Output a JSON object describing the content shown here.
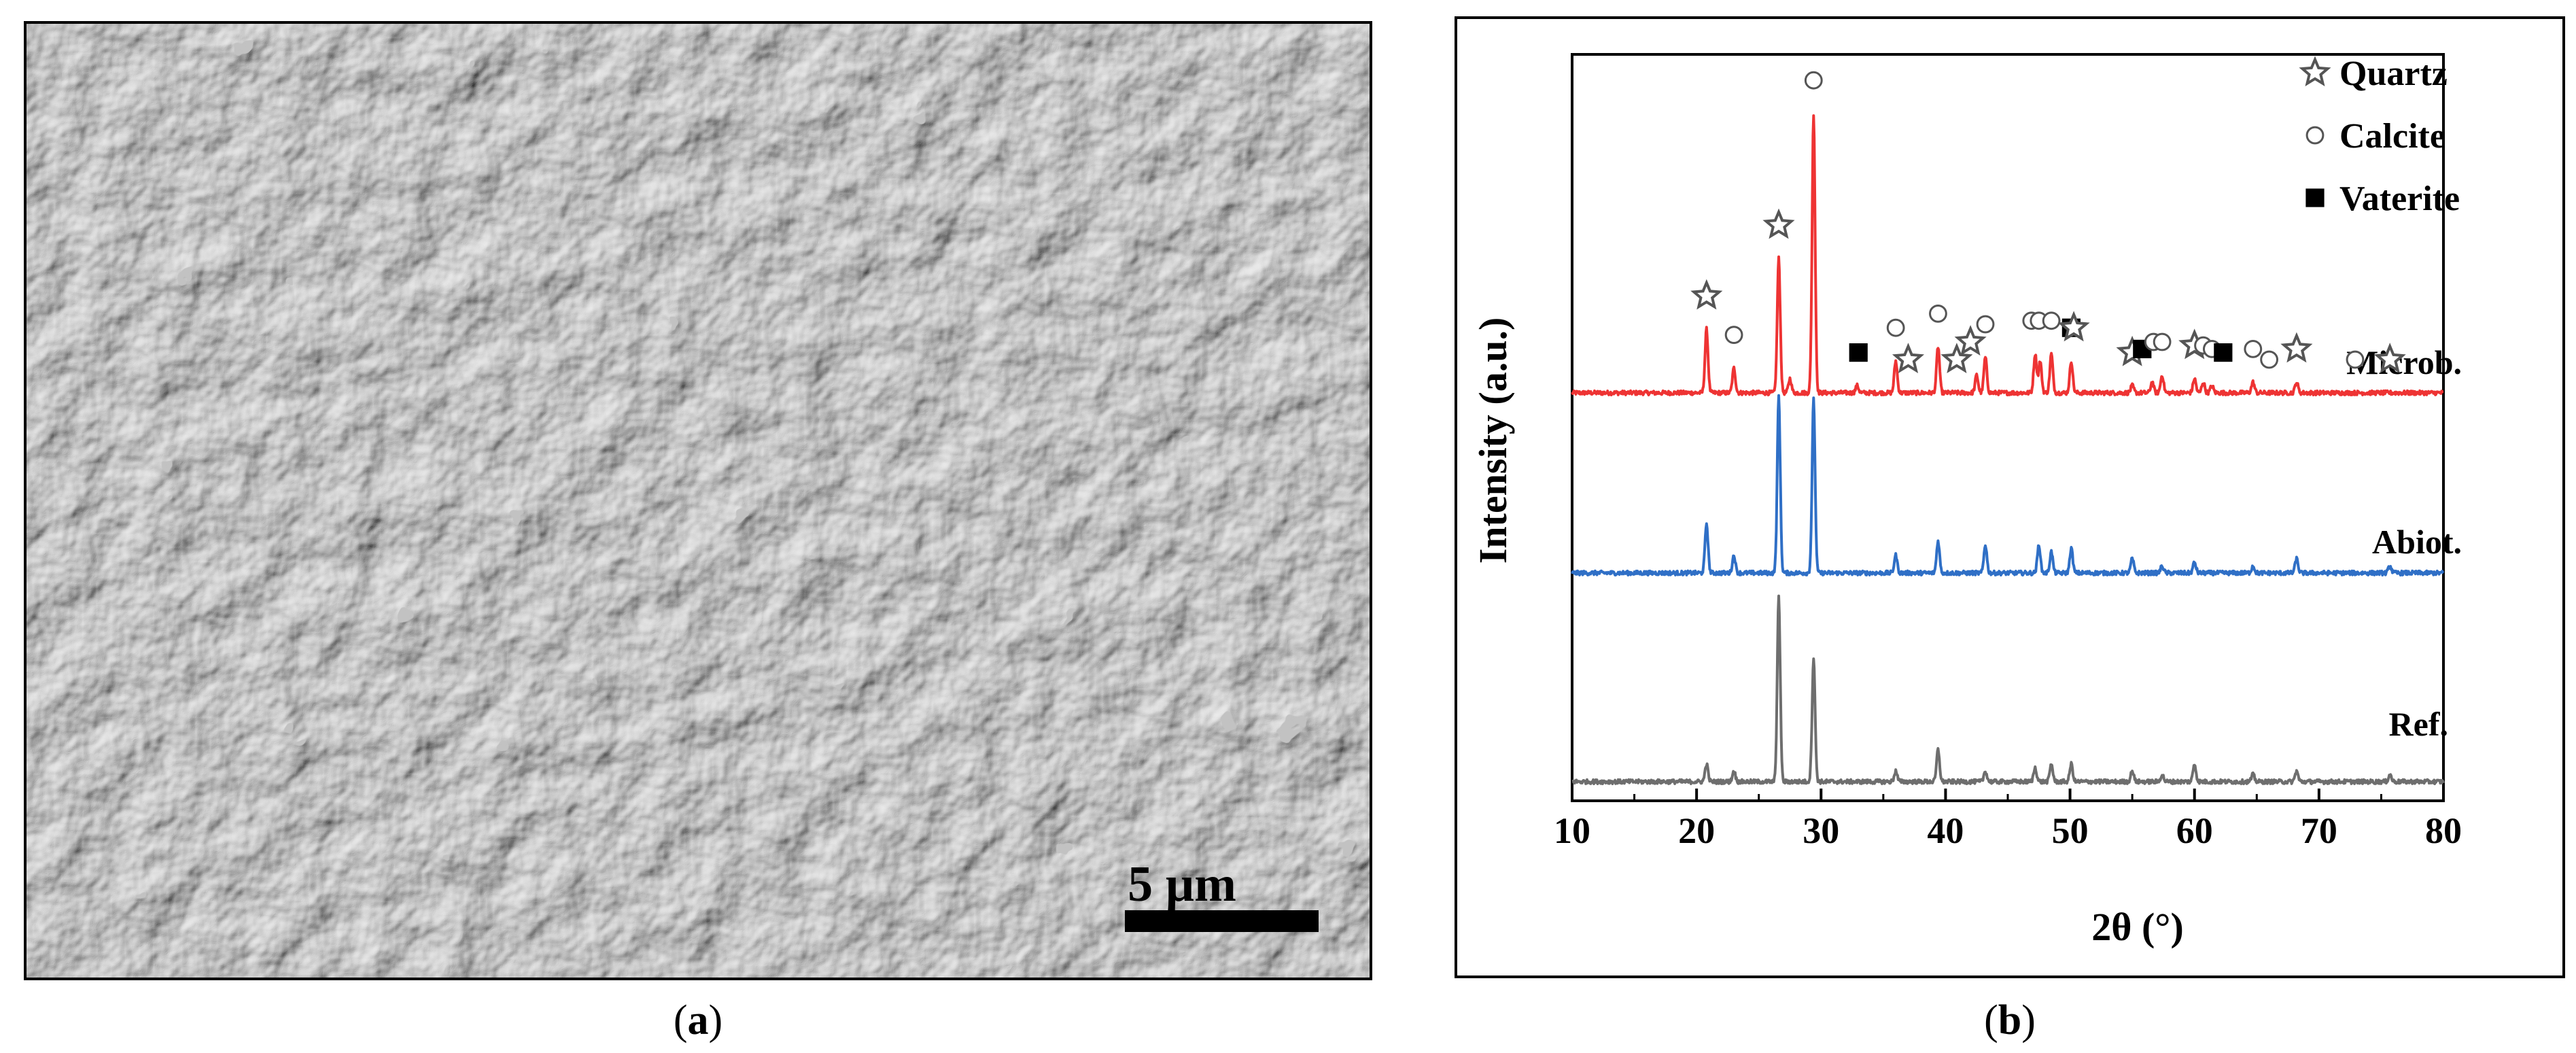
{
  "panel_a": {
    "scale_bar_label": "5 µm",
    "caption": "a"
  },
  "panel_b": {
    "caption": "b",
    "chart_data": {
      "type": "line",
      "title": "",
      "xlabel": "2θ (°)",
      "ylabel": "Intensity (a.u.)",
      "xlim": [
        10,
        80
      ],
      "xticks": [
        10,
        20,
        30,
        40,
        50,
        60,
        70,
        80
      ],
      "grid": false,
      "legend_position": "top-right",
      "legend": [
        {
          "label": "Quartz",
          "marker": "star"
        },
        {
          "label": "Calcite",
          "marker": "circle"
        },
        {
          "label": "Vaterite",
          "marker": "square"
        }
      ],
      "series": [
        {
          "name": "Microb.",
          "color": "#ee3333",
          "peaks": [
            {
              "x": 20.8,
              "h": 0.18
            },
            {
              "x": 23.0,
              "h": 0.07
            },
            {
              "x": 26.6,
              "h": 0.38
            },
            {
              "x": 27.5,
              "h": 0.04
            },
            {
              "x": 29.4,
              "h": 0.79
            },
            {
              "x": 32.9,
              "h": 0.02
            },
            {
              "x": 36.0,
              "h": 0.09
            },
            {
              "x": 39.4,
              "h": 0.13
            },
            {
              "x": 42.5,
              "h": 0.05
            },
            {
              "x": 43.2,
              "h": 0.1
            },
            {
              "x": 47.2,
              "h": 0.11
            },
            {
              "x": 47.6,
              "h": 0.09
            },
            {
              "x": 48.5,
              "h": 0.11
            },
            {
              "x": 50.1,
              "h": 0.09
            },
            {
              "x": 55.0,
              "h": 0.02
            },
            {
              "x": 56.6,
              "h": 0.03
            },
            {
              "x": 57.4,
              "h": 0.05
            },
            {
              "x": 60.0,
              "h": 0.04
            },
            {
              "x": 60.7,
              "h": 0.03
            },
            {
              "x": 61.4,
              "h": 0.02
            },
            {
              "x": 64.7,
              "h": 0.03
            },
            {
              "x": 68.2,
              "h": 0.03
            }
          ],
          "markers": [
            {
              "x": 20.8,
              "type": "star"
            },
            {
              "x": 23.0,
              "type": "circle"
            },
            {
              "x": 26.6,
              "type": "star"
            },
            {
              "x": 29.4,
              "type": "circle"
            },
            {
              "x": 33.0,
              "type": "square"
            },
            {
              "x": 36.0,
              "type": "circle"
            },
            {
              "x": 37.0,
              "type": "star"
            },
            {
              "x": 39.4,
              "type": "circle"
            },
            {
              "x": 40.9,
              "type": "star"
            },
            {
              "x": 42.0,
              "type": "star"
            },
            {
              "x": 43.2,
              "type": "circle"
            },
            {
              "x": 46.9,
              "type": "circle"
            },
            {
              "x": 47.5,
              "type": "circle"
            },
            {
              "x": 48.5,
              "type": "circle"
            },
            {
              "x": 50.1,
              "type": "square"
            },
            {
              "x": 50.3,
              "type": "star"
            },
            {
              "x": 55.0,
              "type": "star"
            },
            {
              "x": 55.8,
              "type": "square"
            },
            {
              "x": 56.7,
              "type": "circle"
            },
            {
              "x": 57.4,
              "type": "circle"
            },
            {
              "x": 60.0,
              "type": "star"
            },
            {
              "x": 60.7,
              "type": "circle"
            },
            {
              "x": 61.4,
              "type": "circle"
            },
            {
              "x": 62.3,
              "type": "square"
            },
            {
              "x": 64.7,
              "type": "circle"
            },
            {
              "x": 66.0,
              "type": "circle"
            },
            {
              "x": 68.2,
              "type": "star"
            },
            {
              "x": 72.9,
              "type": "circle"
            },
            {
              "x": 75.7,
              "type": "star"
            }
          ]
        },
        {
          "name": "Abiot.",
          "color": "#2f6fc6",
          "peaks": [
            {
              "x": 20.8,
              "h": 0.14
            },
            {
              "x": 23.0,
              "h": 0.05
            },
            {
              "x": 26.6,
              "h": 0.5
            },
            {
              "x": 29.4,
              "h": 0.49
            },
            {
              "x": 36.0,
              "h": 0.05
            },
            {
              "x": 39.4,
              "h": 0.09
            },
            {
              "x": 43.2,
              "h": 0.08
            },
            {
              "x": 47.5,
              "h": 0.08
            },
            {
              "x": 48.5,
              "h": 0.06
            },
            {
              "x": 50.1,
              "h": 0.07
            },
            {
              "x": 55.0,
              "h": 0.04
            },
            {
              "x": 57.4,
              "h": 0.02
            },
            {
              "x": 60.0,
              "h": 0.03
            },
            {
              "x": 64.7,
              "h": 0.02
            },
            {
              "x": 68.2,
              "h": 0.04
            },
            {
              "x": 75.7,
              "h": 0.02
            }
          ],
          "markers": []
        },
        {
          "name": "Ref.",
          "color": "#6e6e6e",
          "peaks": [
            {
              "x": 20.8,
              "h": 0.05
            },
            {
              "x": 23.0,
              "h": 0.03
            },
            {
              "x": 26.6,
              "h": 0.52
            },
            {
              "x": 29.4,
              "h": 0.35
            },
            {
              "x": 36.0,
              "h": 0.03
            },
            {
              "x": 39.4,
              "h": 0.09
            },
            {
              "x": 43.2,
              "h": 0.03
            },
            {
              "x": 47.2,
              "h": 0.04
            },
            {
              "x": 48.5,
              "h": 0.05
            },
            {
              "x": 50.1,
              "h": 0.05
            },
            {
              "x": 55.0,
              "h": 0.03
            },
            {
              "x": 57.4,
              "h": 0.02
            },
            {
              "x": 60.0,
              "h": 0.05
            },
            {
              "x": 64.7,
              "h": 0.02
            },
            {
              "x": 68.2,
              "h": 0.03
            },
            {
              "x": 75.7,
              "h": 0.02
            }
          ],
          "markers": []
        }
      ]
    }
  }
}
